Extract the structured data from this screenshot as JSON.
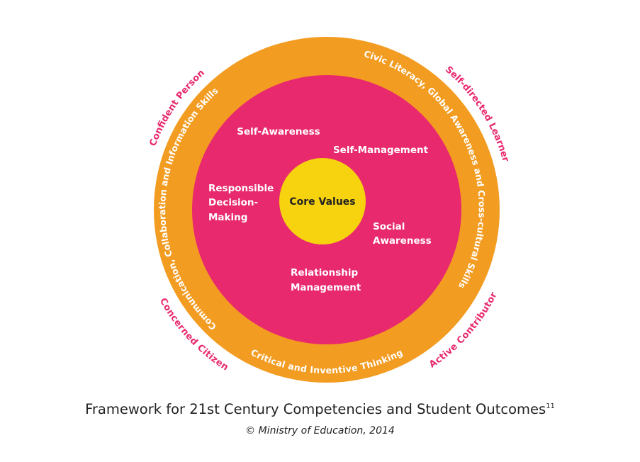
{
  "colors": {
    "outer_ring": "#F39C22",
    "middle_circle": "#E8296E",
    "core": "#F6D20F",
    "outcome_text": "#E8296E",
    "skill_text": "#FFFFFF",
    "core_text": "#222222",
    "caption_text": "#222222"
  },
  "core": {
    "label": "Core Values"
  },
  "sel_competencies": {
    "self_awareness": "Self-Awareness",
    "self_management": "Self-Management",
    "responsible_decision_making": [
      "Responsible",
      "Decision-",
      "Making"
    ],
    "social_awareness": [
      "Social",
      "Awareness"
    ],
    "relationship_management": [
      "Relationship",
      "Management"
    ]
  },
  "emerging_competencies": {
    "communication": "Communication, Collaboration and Information Skills",
    "civic_literacy": "Civic Literacy, Global Awareness and Cross-cultural Skills",
    "critical_thinking": "Critical and Inventive Thinking"
  },
  "student_outcomes": {
    "confident_person": "Confident Person",
    "self_directed_learner": "Self-directed Learner",
    "concerned_citizen": "Concerned Citizen",
    "active_contributor": "Active Contributor"
  },
  "caption": {
    "title": "Framework for 21st Century Competencies and Student Outcomes",
    "footnote": "11",
    "copyright": "© Ministry of Education, 2014"
  }
}
